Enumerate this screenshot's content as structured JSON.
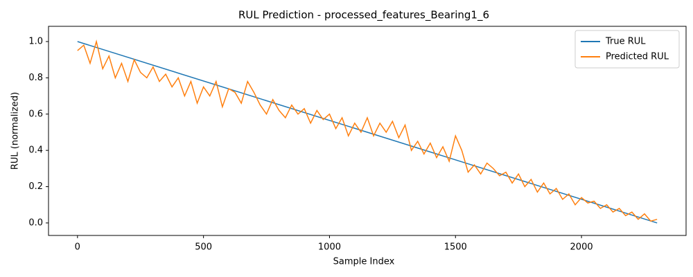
{
  "chart_data": {
    "type": "line",
    "title": "RUL Prediction - processed_features_Bearing1_6",
    "xlabel": "Sample Index",
    "ylabel": "RUL (normalized)",
    "xlim": [
      -115,
      2415
    ],
    "ylim": [
      -0.069,
      1.084
    ],
    "xticks": [
      0,
      500,
      1000,
      1500,
      2000
    ],
    "yticks": [
      {
        "value": 0,
        "label": "0.0"
      },
      0.2,
      0.4,
      0.6,
      0.8,
      {
        "value": 1,
        "label": "1.0"
      }
    ],
    "legend": "upper right",
    "series": [
      {
        "name": "True RUL",
        "color": "#1f77b4",
        "x": [
          0,
          2300
        ],
        "values": [
          1,
          0
        ]
      },
      {
        "name": "Predicted RUL",
        "color": "#ff7f0e",
        "x": [
          0,
          25,
          50,
          75,
          100,
          125,
          150,
          175,
          200,
          225,
          250,
          275,
          300,
          325,
          350,
          375,
          400,
          425,
          450,
          475,
          500,
          525,
          550,
          575,
          600,
          625,
          650,
          675,
          700,
          725,
          750,
          775,
          800,
          825,
          850,
          875,
          900,
          925,
          950,
          975,
          1000,
          1025,
          1050,
          1075,
          1100,
          1125,
          1150,
          1175,
          1200,
          1225,
          1250,
          1275,
          1300,
          1325,
          1350,
          1375,
          1400,
          1425,
          1450,
          1475,
          1500,
          1525,
          1550,
          1575,
          1600,
          1625,
          1650,
          1675,
          1700,
          1725,
          1750,
          1775,
          1800,
          1825,
          1850,
          1875,
          1900,
          1925,
          1950,
          1975,
          2000,
          2025,
          2050,
          2075,
          2100,
          2125,
          2150,
          2175,
          2200,
          2225,
          2250,
          2275,
          2300
        ],
        "values": [
          0.95,
          0.98,
          0.88,
          1.0,
          0.85,
          0.92,
          0.8,
          0.88,
          0.78,
          0.9,
          0.83,
          0.8,
          0.86,
          0.78,
          0.82,
          0.75,
          0.8,
          0.7,
          0.78,
          0.66,
          0.75,
          0.7,
          0.78,
          0.64,
          0.74,
          0.72,
          0.66,
          0.78,
          0.72,
          0.65,
          0.6,
          0.68,
          0.62,
          0.58,
          0.65,
          0.6,
          0.63,
          0.55,
          0.62,
          0.57,
          0.6,
          0.52,
          0.58,
          0.48,
          0.55,
          0.5,
          0.58,
          0.48,
          0.55,
          0.5,
          0.56,
          0.47,
          0.54,
          0.4,
          0.45,
          0.38,
          0.44,
          0.36,
          0.42,
          0.34,
          0.48,
          0.4,
          0.28,
          0.32,
          0.27,
          0.33,
          0.3,
          0.26,
          0.28,
          0.22,
          0.27,
          0.2,
          0.24,
          0.17,
          0.22,
          0.16,
          0.19,
          0.13,
          0.16,
          0.1,
          0.14,
          0.11,
          0.12,
          0.08,
          0.1,
          0.06,
          0.08,
          0.04,
          0.06,
          0.02,
          0.05,
          0.01,
          0.02
        ]
      }
    ]
  }
}
